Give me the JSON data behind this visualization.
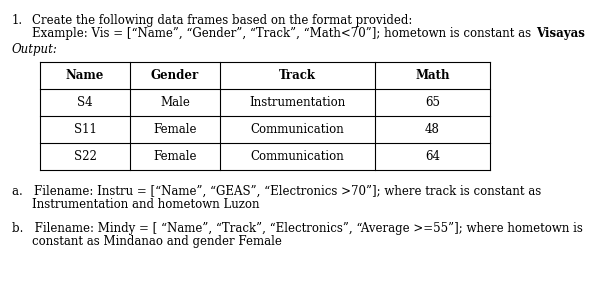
{
  "title_num": "1.",
  "title_line1": "Create the following data frames based on the format provided:",
  "title_line2_normal": "Example: Vis = [“Name”, “Gender”, “Track”, “Math<70”]; hometown is constant as ",
  "title_line2_bold": "Visayas",
  "output_label": "Output:",
  "table_headers": [
    "Name",
    "Gender",
    "Track",
    "Math"
  ],
  "table_data": [
    [
      "S4",
      "Male",
      "Instrumentation",
      "65"
    ],
    [
      "S11",
      "Female",
      "Communication",
      "48"
    ],
    [
      "S22",
      "Female",
      "Communication",
      "64"
    ]
  ],
  "note_a1": "a.   Filename: Instru = [“Name”, “GEAS”, “Electronics >70”]; where track is constant as",
  "note_a2": "Instrumentation and hometown Luzon",
  "note_b1": "b.   Filename: Mindy = [ “Name”, “Track”, “Electronics”, “Average >=55”]; where hometown is",
  "note_b2": "constant as Mindanao and gender Female",
  "bg_color": "#ffffff",
  "text_color": "#000000",
  "font_family": "DejaVu Serif",
  "font_size": 8.5
}
